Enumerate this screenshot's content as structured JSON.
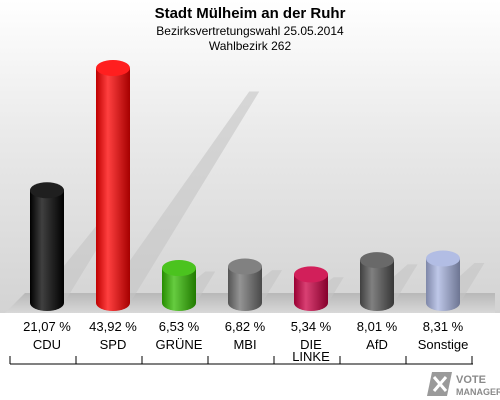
{
  "title": "Stadt Mülheim an der Ruhr",
  "subtitle1": "Bezirksvertretungswahl 25.05.2014",
  "subtitle2": "Wahlbezirk 262",
  "logo": {
    "line1": "VOTE",
    "line2": "MANAGER"
  },
  "chart_data": {
    "type": "bar",
    "title": "Stadt Mülheim an der Ruhr",
    "categories": [
      "CDU",
      "SPD",
      "GRÜNE",
      "MBI",
      "DIE LINKE",
      "AfD",
      "Sonstige"
    ],
    "value_labels": [
      "21,07 %",
      "43,92 %",
      "6,53 %",
      "6,82 %",
      "5,34 %",
      "8,01 %",
      "8,31 %"
    ],
    "values": [
      21.07,
      43.92,
      6.53,
      6.82,
      5.34,
      8.01,
      8.31
    ],
    "colors": [
      "#000000",
      "#ff0000",
      "#33bb00",
      "#707070",
      "#cc0044",
      "#555555",
      "#a8b4e0"
    ],
    "unit": "%",
    "ylim": [
      0,
      50
    ],
    "grid": false,
    "legend": "none"
  }
}
